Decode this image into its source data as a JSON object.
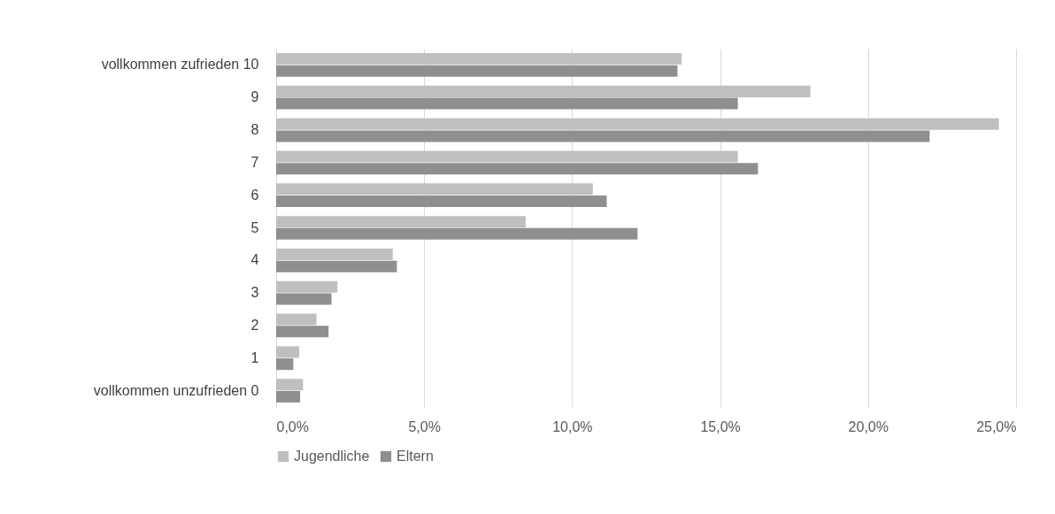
{
  "chart_data": {
    "type": "bar",
    "orientation": "horizontal",
    "categories": [
      "vollkommen zufrieden 10",
      "9",
      "8",
      "7",
      "6",
      "5",
      "4",
      "3",
      "2",
      "1",
      "vollkommen unzufrieden 0"
    ],
    "series": [
      {
        "name": "Jugendliche",
        "color": "#bfbfbf",
        "values": [
          13.7,
          18.05,
          24.42,
          15.6,
          10.7,
          8.43,
          3.94,
          2.07,
          1.36,
          0.78,
          0.91
        ]
      },
      {
        "name": "Eltern",
        "color": "#8f8f8f",
        "values": [
          13.56,
          15.6,
          22.08,
          16.28,
          11.17,
          12.21,
          4.08,
          1.87,
          1.77,
          0.58,
          0.81
        ]
      }
    ],
    "xlim": [
      0,
      25
    ],
    "xticks": [
      {
        "value": 0,
        "label": "0,0%"
      },
      {
        "value": 5,
        "label": "5,0%"
      },
      {
        "value": 10,
        "label": "10,0%"
      },
      {
        "value": 15,
        "label": "15,0%"
      },
      {
        "value": 20,
        "label": "20,0%"
      },
      {
        "value": 25,
        "label": "25,0%"
      }
    ],
    "grid": "x",
    "legend": "bottom"
  }
}
